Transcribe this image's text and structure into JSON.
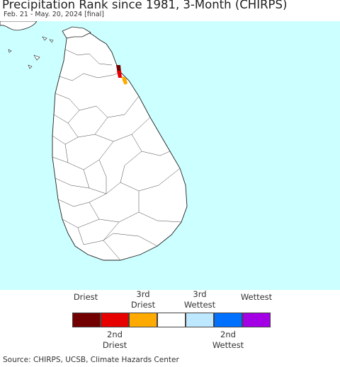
{
  "title": "Precipitation Rank since 1981, 3-Month (CHIRPS)",
  "subtitle": "Feb. 21 - May. 20, 2024 [final]",
  "map": {
    "ocean_color": "#ccffff",
    "land_color": "#ffffff",
    "border_color": "#222222",
    "highlights": [
      {
        "rank": "Driest",
        "color": "#730000"
      },
      {
        "rank": "2nd Driest",
        "color": "#e60000"
      },
      {
        "rank": "3rd Driest",
        "color": "#ffaa00"
      }
    ]
  },
  "legend": {
    "top_labels": [
      {
        "line1": "",
        "line2": "Driest"
      },
      {
        "line1": "3rd",
        "line2": "Driest"
      },
      {
        "line1": "3rd",
        "line2": "Wettest"
      },
      {
        "line1": "",
        "line2": "Wettest"
      }
    ],
    "bottom_labels": [
      {
        "line1": "2nd",
        "line2": "Driest"
      },
      {
        "line1": "2nd",
        "line2": "Wettest"
      }
    ],
    "colors": [
      "#730000",
      "#e60000",
      "#ffaa00",
      "#ffffff",
      "#bee8ff",
      "#0070ff",
      "#a300e6"
    ]
  },
  "source": "Source: CHIRPS, UCSB, Climate Hazards Center"
}
